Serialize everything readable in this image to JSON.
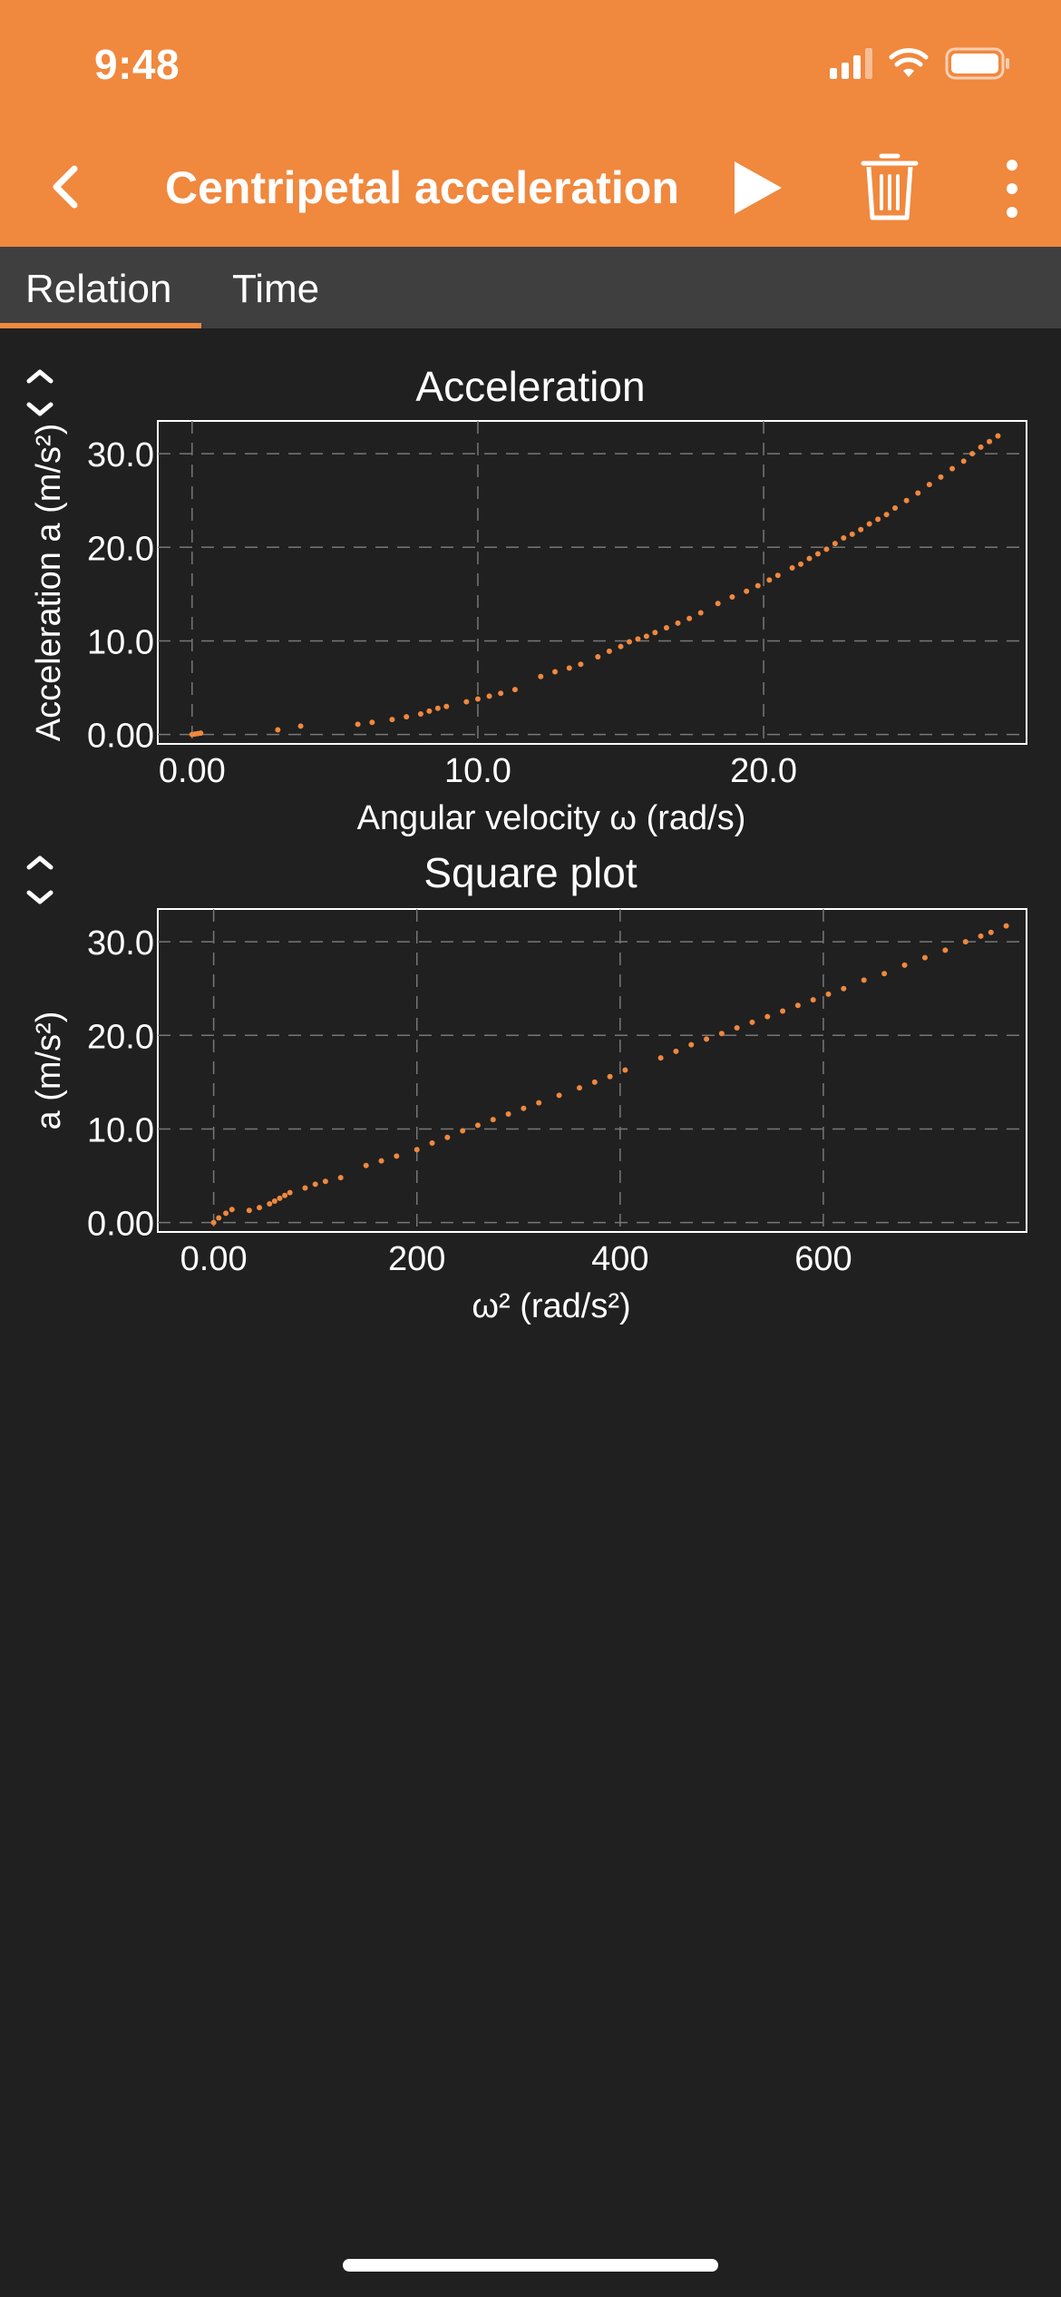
{
  "status_bar": {
    "time": "9:48"
  },
  "toolbar": {
    "title": "Centripetal acceleration",
    "back_icon": "chevron-left-icon",
    "play_icon": "play-icon",
    "delete_icon": "trash-icon",
    "more_icon": "more-vertical-icon"
  },
  "tabs": [
    {
      "label": "Relation",
      "selected": true
    },
    {
      "label": "Time",
      "selected": false
    }
  ],
  "colors": {
    "accent": "#f0883e",
    "background": "#202020",
    "tab_bar": "#3f3f3f"
  },
  "chart_data": [
    {
      "type": "scatter",
      "title": "Acceleration",
      "xlabel": "Angular velocity ω (rad/s)",
      "ylabel": "Acceleration a (m/s²)",
      "xlim": [
        -1.2,
        29.2
      ],
      "ylim": [
        -1.0,
        33.5
      ],
      "xticks": [
        0,
        10,
        20
      ],
      "xtick_labels": [
        "0.00",
        "10.0",
        "20.0"
      ],
      "yticks": [
        0,
        10,
        20,
        30
      ],
      "ytick_labels": [
        "0.00",
        "10.0",
        "20.0",
        "30.0"
      ],
      "grid": true,
      "series": [
        {
          "color": "#f0883e",
          "points": [
            [
              0.0,
              0.0
            ],
            [
              0.1,
              0.05
            ],
            [
              0.2,
              0.1
            ],
            [
              0.3,
              0.15
            ],
            [
              3.0,
              0.5
            ],
            [
              3.8,
              0.9
            ],
            [
              5.8,
              1.1
            ],
            [
              6.3,
              1.3
            ],
            [
              7.0,
              1.6
            ],
            [
              7.5,
              1.9
            ],
            [
              8.0,
              2.2
            ],
            [
              8.3,
              2.5
            ],
            [
              8.6,
              2.8
            ],
            [
              8.9,
              3.0
            ],
            [
              9.6,
              3.5
            ],
            [
              10.0,
              3.8
            ],
            [
              10.4,
              4.1
            ],
            [
              10.8,
              4.4
            ],
            [
              11.3,
              4.8
            ],
            [
              12.2,
              6.2
            ],
            [
              12.7,
              6.7
            ],
            [
              13.2,
              7.1
            ],
            [
              13.6,
              7.5
            ],
            [
              14.2,
              8.3
            ],
            [
              14.6,
              8.9
            ],
            [
              15.0,
              9.4
            ],
            [
              15.3,
              9.9
            ],
            [
              15.6,
              10.2
            ],
            [
              15.9,
              10.5
            ],
            [
              16.2,
              10.9
            ],
            [
              16.6,
              11.4
            ],
            [
              17.0,
              11.9
            ],
            [
              17.4,
              12.4
            ],
            [
              17.8,
              13.0
            ],
            [
              18.4,
              14.0
            ],
            [
              18.9,
              14.7
            ],
            [
              19.4,
              15.3
            ],
            [
              19.8,
              15.9
            ],
            [
              20.2,
              16.5
            ],
            [
              20.5,
              17.0
            ],
            [
              21.0,
              17.8
            ],
            [
              21.3,
              18.2
            ],
            [
              21.6,
              18.8
            ],
            [
              21.9,
              19.3
            ],
            [
              22.2,
              19.8
            ],
            [
              22.5,
              20.4
            ],
            [
              22.8,
              21.0
            ],
            [
              23.1,
              21.4
            ],
            [
              23.4,
              21.9
            ],
            [
              23.7,
              22.5
            ],
            [
              24.0,
              23.0
            ],
            [
              24.3,
              23.5
            ],
            [
              24.6,
              24.2
            ],
            [
              25.0,
              25.0
            ],
            [
              25.4,
              25.8
            ],
            [
              25.8,
              26.7
            ],
            [
              26.2,
              27.5
            ],
            [
              26.6,
              28.4
            ],
            [
              27.0,
              29.2
            ],
            [
              27.3,
              30.0
            ],
            [
              27.6,
              30.7
            ],
            [
              27.9,
              31.3
            ],
            [
              28.2,
              31.9
            ]
          ]
        }
      ]
    },
    {
      "type": "scatter",
      "title": "Square plot",
      "xlabel": "ω² (rad/s²)",
      "ylabel": "a (m/s²)",
      "xlim": [
        -55,
        800
      ],
      "ylim": [
        -1.0,
        33.5
      ],
      "xticks": [
        0,
        200,
        400,
        600
      ],
      "xtick_labels": [
        "0.00",
        "200",
        "400",
        "600"
      ],
      "yticks": [
        0,
        10,
        20,
        30
      ],
      "ytick_labels": [
        "0.00",
        "10.0",
        "20.0",
        "30.0"
      ],
      "grid": true,
      "series": [
        {
          "color": "#f0883e",
          "points": [
            [
              0,
              0.0
            ],
            [
              5,
              0.5
            ],
            [
              12,
              1.0
            ],
            [
              18,
              1.4
            ],
            [
              35,
              1.3
            ],
            [
              45,
              1.6
            ],
            [
              55,
              2.0
            ],
            [
              60,
              2.3
            ],
            [
              65,
              2.6
            ],
            [
              70,
              2.9
            ],
            [
              75,
              3.2
            ],
            [
              90,
              3.7
            ],
            [
              100,
              4.1
            ],
            [
              110,
              4.4
            ],
            [
              125,
              4.8
            ],
            [
              150,
              6.1
            ],
            [
              165,
              6.6
            ],
            [
              180,
              7.1
            ],
            [
              200,
              7.8
            ],
            [
              215,
              8.5
            ],
            [
              230,
              9.1
            ],
            [
              245,
              9.8
            ],
            [
              260,
              10.4
            ],
            [
              275,
              11.0
            ],
            [
              290,
              11.6
            ],
            [
              305,
              12.2
            ],
            [
              320,
              12.8
            ],
            [
              340,
              13.6
            ],
            [
              360,
              14.4
            ],
            [
              375,
              15.0
            ],
            [
              390,
              15.6
            ],
            [
              405,
              16.3
            ],
            [
              440,
              17.6
            ],
            [
              455,
              18.3
            ],
            [
              470,
              19.0
            ],
            [
              485,
              19.6
            ],
            [
              500,
              20.2
            ],
            [
              515,
              20.8
            ],
            [
              530,
              21.4
            ],
            [
              545,
              22.0
            ],
            [
              560,
              22.6
            ],
            [
              575,
              23.2
            ],
            [
              590,
              23.8
            ],
            [
              605,
              24.4
            ],
            [
              620,
              25.0
            ],
            [
              640,
              25.9
            ],
            [
              660,
              26.6
            ],
            [
              680,
              27.5
            ],
            [
              700,
              28.3
            ],
            [
              720,
              29.1
            ],
            [
              740,
              30.0
            ],
            [
              755,
              30.6
            ],
            [
              765,
              31.0
            ],
            [
              780,
              31.7
            ]
          ]
        }
      ]
    }
  ]
}
